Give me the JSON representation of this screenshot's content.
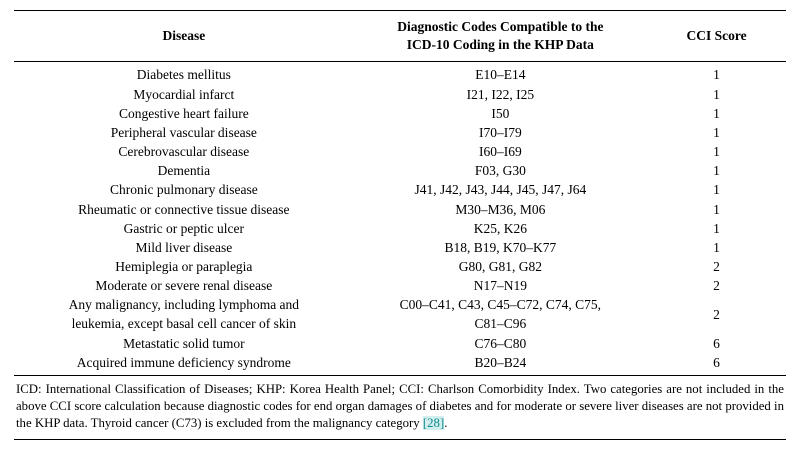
{
  "table": {
    "headers": [
      "Disease",
      "Diagnostic Codes Compatible to the\nICD-10 Coding in the KHP Data",
      "CCI Score"
    ],
    "rows": [
      {
        "disease": "Diabetes mellitus",
        "codes": "E10–E14",
        "score": "1"
      },
      {
        "disease": "Myocardial infarct",
        "codes": "I21, I22, I25",
        "score": "1"
      },
      {
        "disease": "Congestive heart failure",
        "codes": "I50",
        "score": "1"
      },
      {
        "disease": "Peripheral vascular disease",
        "codes": "I70–I79",
        "score": "1"
      },
      {
        "disease": "Cerebrovascular disease",
        "codes": "I60–I69",
        "score": "1"
      },
      {
        "disease": "Dementia",
        "codes": "F03, G30",
        "score": "1"
      },
      {
        "disease": "Chronic pulmonary disease",
        "codes": "J41, J42, J43, J44, J45, J47, J64",
        "score": "1"
      },
      {
        "disease": "Rheumatic or connective tissue disease",
        "codes": "M30–M36, M06",
        "score": "1"
      },
      {
        "disease": "Gastric or peptic ulcer",
        "codes": "K25, K26",
        "score": "1"
      },
      {
        "disease": "Mild liver disease",
        "codes": "B18, B19, K70–K77",
        "score": "1"
      },
      {
        "disease": "Hemiplegia or paraplegia",
        "codes": "G80, G81, G82",
        "score": "2"
      },
      {
        "disease": "Moderate or severe renal disease",
        "codes": "N17–N19",
        "score": "2"
      },
      {
        "disease": "Any malignancy, including lymphoma and\nleukemia, except basal cell cancer of skin",
        "codes": "C00–C41, C43, C45–C72, C74, C75,\nC81–C96",
        "score": "2"
      },
      {
        "disease": "Metastatic solid tumor",
        "codes": "C76–C80",
        "score": "6"
      },
      {
        "disease": "Acquired immune deficiency syndrome",
        "codes": "B20–B24",
        "score": "6"
      }
    ]
  },
  "footnote": {
    "text_before": "ICD: International Classification of Diseases; KHP: Korea Health Panel; CCI: Charlson Comorbidity Index. Two categories are not included in the above CCI score calculation because diagnostic codes for end organ damages of diabetes and for moderate or severe liver diseases are not provided in the KHP data. Thyroid cancer (C73) is excluded from the malignancy category ",
    "citation": "[28]",
    "text_after": "."
  }
}
